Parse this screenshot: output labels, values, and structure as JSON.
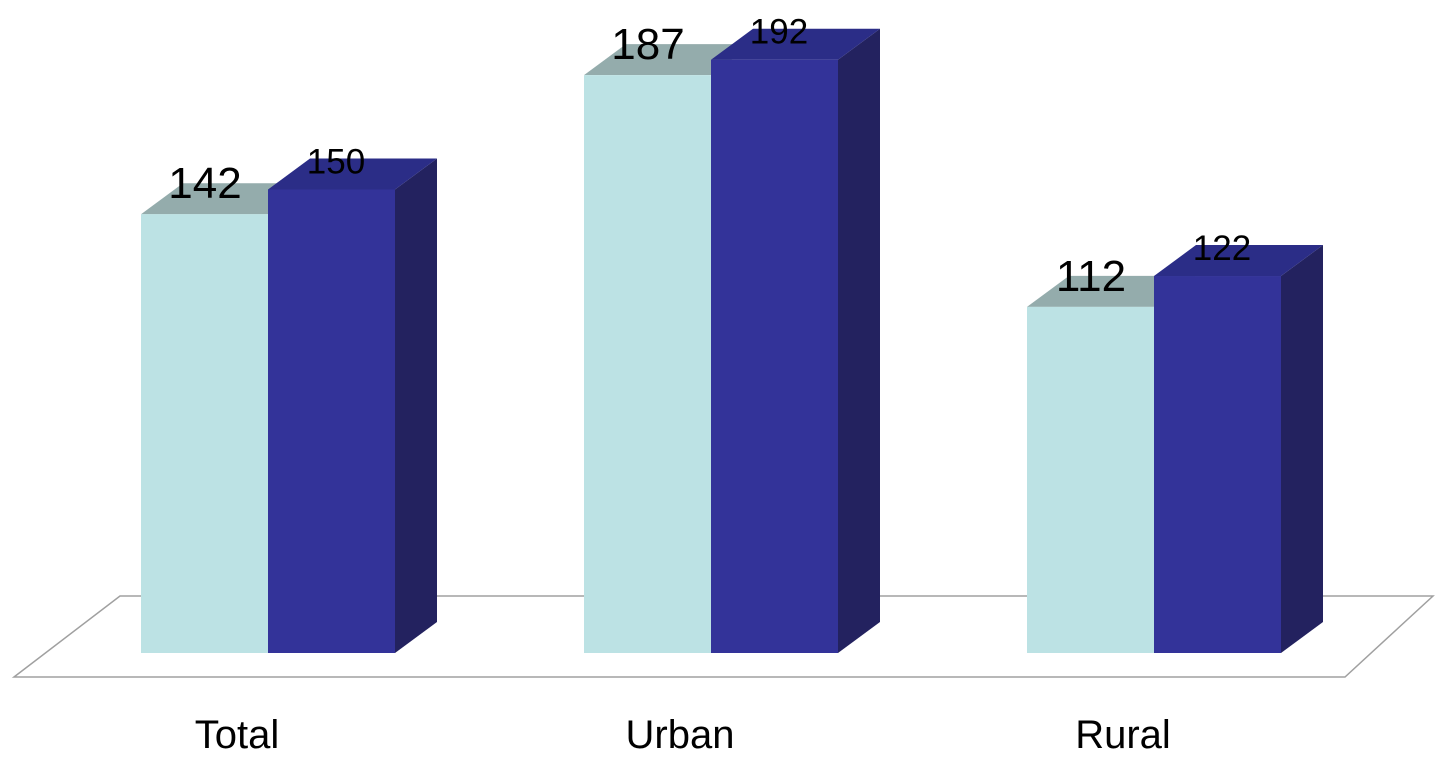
{
  "chart_data": {
    "type": "bar",
    "categories": [
      "Total",
      "Urban",
      "Rural"
    ],
    "series": [
      {
        "values": [
          142,
          187,
          112
        ],
        "color": "#bce2e4"
      },
      {
        "values": [
          150,
          192,
          122
        ],
        "color": "#333399"
      }
    ],
    "data_labels": true,
    "three_d": true,
    "grid": false,
    "legend": "none",
    "xlabel": "",
    "ylabel": "",
    "colors": {
      "series1_front": "#bce2e4",
      "series1_top": "#94acac",
      "series2_front": "#333399",
      "series2_top": "#2b2d87",
      "series2_side": "#23225f",
      "floor_stroke": "#a0a0a0"
    }
  }
}
